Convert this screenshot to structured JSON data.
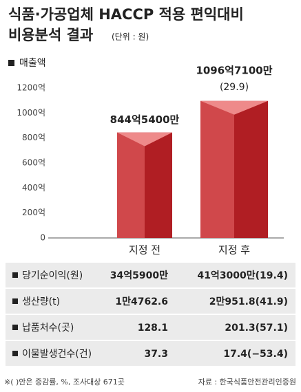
{
  "chart_data": {
    "type": "bar",
    "title": "식품·가공업체 HACCP 적용 편익대비",
    "title_line2": "비용분석 결과",
    "unit": "(단위 : 원)",
    "categories": [
      "지정 전",
      "지정 후"
    ],
    "series": [
      {
        "name": "매출액",
        "color": "#b01e23",
        "values": [
          844.54,
          1096.71
        ],
        "value_labels": [
          "844억5400만",
          "1096억7100만"
        ]
      }
    ],
    "growth_label": "(29.9)",
    "ylim": [
      0,
      1200
    ],
    "yticks": [
      0,
      {
        "value": 200,
        "label": "200억"
      },
      {
        "value": 400,
        "label": "400억"
      },
      {
        "value": 600,
        "label": "600억"
      },
      {
        "value": 800,
        "label": "800억"
      },
      {
        "value": 1000,
        "label": "1000억"
      },
      {
        "value": 1200,
        "label": "1200억"
      }
    ],
    "grid": false
  },
  "table": {
    "rows": [
      [
        "당기순이익(원)",
        "34억5900만",
        "41억3000만(19.4)"
      ],
      [
        "생산량(t)",
        "1만4762.6",
        "2만951.8(41.9)"
      ],
      [
        "납품처수(곳)",
        "128.1",
        "201.3(57.1)"
      ],
      [
        "이물발생건수(건)",
        "37.3",
        "17.4(−53.4)"
      ]
    ]
  },
  "footer": {
    "note": "※( )안은 증감률, %, 조사대상 671곳",
    "source": "자료 : 한국식품안전관리인증원"
  }
}
